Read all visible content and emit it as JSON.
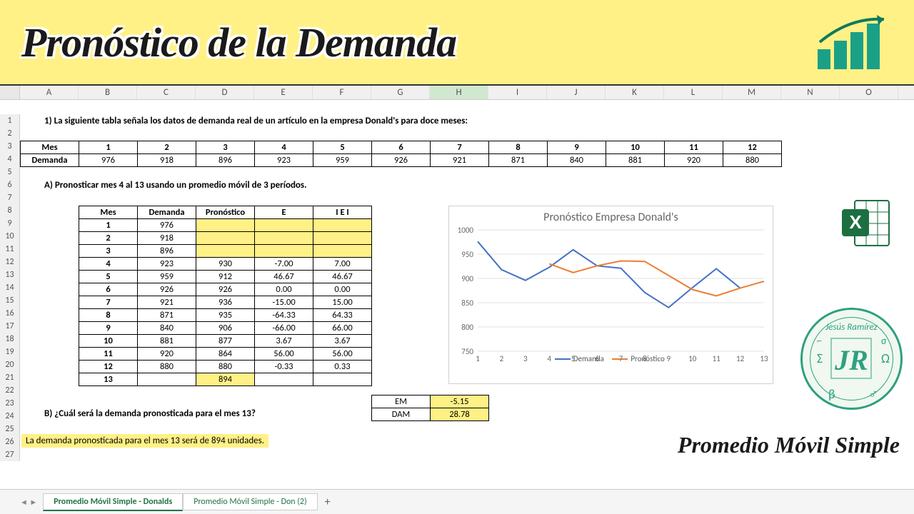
{
  "header": {
    "title": "Pronóstico de la Demanda",
    "subtitle": "Promedio Móvil Simple"
  },
  "columns": [
    "A",
    "B",
    "C",
    "D",
    "E",
    "F",
    "G",
    "H",
    "I",
    "J",
    "K",
    "L",
    "M",
    "N",
    "O"
  ],
  "selected_col": "H",
  "row_count": 27,
  "text": {
    "q1": "1)    La siguiente tabla señala los datos de demanda real de un artículo en la empresa Donald's para doce meses:",
    "qA": "A)    Pronosticar mes 4 al 13 usando un promedio móvil de 3 períodos.",
    "qB": "B) ¿Cuál será la demanda pronosticada para el mes 13?",
    "answer": "La demanda pronosticada para el mes 13 será de 894 unidades."
  },
  "demand_table": {
    "row1_label": "Mes",
    "row2_label": "Demanda",
    "months": [
      "1",
      "2",
      "3",
      "4",
      "5",
      "6",
      "7",
      "8",
      "9",
      "10",
      "11",
      "12"
    ],
    "demand": [
      "976",
      "918",
      "896",
      "923",
      "959",
      "926",
      "921",
      "871",
      "840",
      "881",
      "920",
      "880"
    ]
  },
  "calc": {
    "headers": [
      "Mes",
      "Demanda",
      "Pronóstico",
      "E",
      "I E I"
    ],
    "rows": [
      {
        "mes": "1",
        "dem": "976",
        "pron": "",
        "e": "",
        "ae": "",
        "yellow": true
      },
      {
        "mes": "2",
        "dem": "918",
        "pron": "",
        "e": "",
        "ae": "",
        "yellow": true
      },
      {
        "mes": "3",
        "dem": "896",
        "pron": "",
        "e": "",
        "ae": "",
        "yellow": true
      },
      {
        "mes": "4",
        "dem": "923",
        "pron": "930",
        "e": "-7.00",
        "ae": "7.00"
      },
      {
        "mes": "5",
        "dem": "959",
        "pron": "912",
        "e": "46.67",
        "ae": "46.67"
      },
      {
        "mes": "6",
        "dem": "926",
        "pron": "926",
        "e": "0.00",
        "ae": "0.00"
      },
      {
        "mes": "7",
        "dem": "921",
        "pron": "936",
        "e": "-15.00",
        "ae": "15.00"
      },
      {
        "mes": "8",
        "dem": "871",
        "pron": "935",
        "e": "-64.33",
        "ae": "64.33"
      },
      {
        "mes": "9",
        "dem": "840",
        "pron": "906",
        "e": "-66.00",
        "ae": "66.00"
      },
      {
        "mes": "10",
        "dem": "881",
        "pron": "877",
        "e": "3.67",
        "ae": "3.67"
      },
      {
        "mes": "11",
        "dem": "920",
        "pron": "864",
        "e": "56.00",
        "ae": "56.00"
      },
      {
        "mes": "12",
        "dem": "880",
        "pron": "880",
        "e": "-0.33",
        "ae": "0.33"
      },
      {
        "mes": "13",
        "dem": "",
        "pron": "894",
        "e": "",
        "ae": "",
        "pron_yellow": true
      }
    ]
  },
  "stats": {
    "em_label": "EM",
    "em_value": "-5.15",
    "dam_label": "DAM",
    "dam_value": "28.78"
  },
  "chart": {
    "title": "Pronóstico Empresa Donald's",
    "x": [
      1,
      2,
      3,
      4,
      5,
      6,
      7,
      8,
      9,
      10,
      11,
      12,
      13
    ],
    "ylim": [
      750,
      1000
    ],
    "yticks": [
      750,
      800,
      850,
      900,
      950,
      1000
    ],
    "series": [
      {
        "name": "Demanda",
        "color": "#4472c4",
        "values": [
          976,
          918,
          896,
          923,
          959,
          926,
          921,
          871,
          840,
          881,
          920,
          880,
          null
        ]
      },
      {
        "name": "Pronóstico",
        "color": "#ed7d31",
        "values": [
          null,
          null,
          null,
          930,
          912,
          926,
          936,
          935,
          906,
          877,
          864,
          880,
          894
        ]
      }
    ],
    "grid_color": "#e0e0e0",
    "bg": "#ffffff"
  },
  "tabs": {
    "active": "Promedio Móvil Simple - Donalds",
    "other": "Promedio Móvil Simple - Don (2)"
  }
}
